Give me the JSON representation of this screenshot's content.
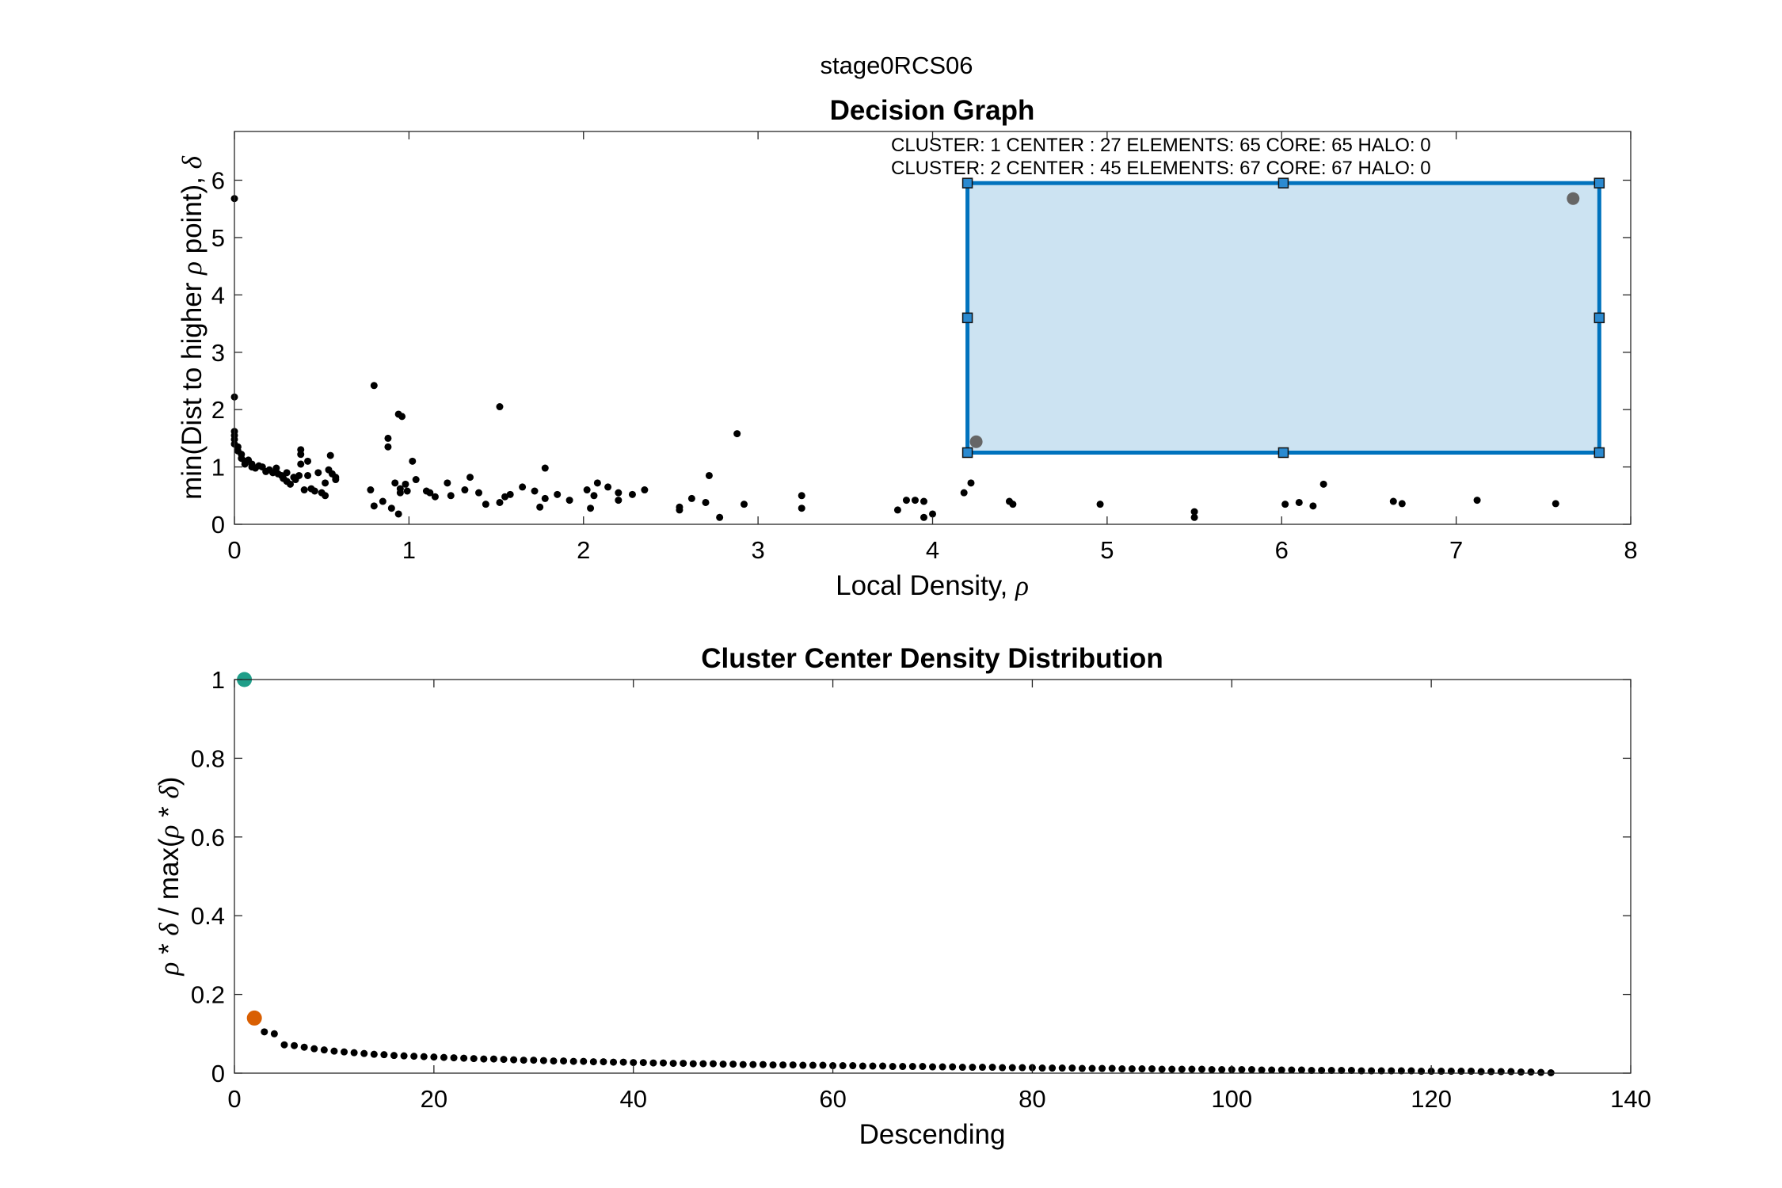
{
  "figure": {
    "suptitle": "stage0RCS06"
  },
  "colors": {
    "points": "#000000",
    "selection_fill": "#cce3f2",
    "selection_edge": "#0072bd",
    "selected_point": "#666666",
    "center_1": "#1f9e89",
    "center_2": "#d95f02"
  },
  "chart_data": [
    {
      "type": "scatter",
      "title": "Decision Graph",
      "xlabel": "Local Density, ρ",
      "xlabel_text": "Local Density, ",
      "xlabel_symbol": "ρ",
      "ylabel": "min(Dist to higher ρ point), δ",
      "ylabel_parts": [
        "min(Dist to higher ",
        "ρ",
        " point), ",
        "δ"
      ],
      "xlim": [
        0,
        8
      ],
      "ylim": [
        0,
        6.85
      ],
      "xticks": [
        0,
        1,
        2,
        3,
        4,
        5,
        6,
        7,
        8
      ],
      "yticks": [
        0,
        1,
        2,
        3,
        4,
        5,
        6
      ],
      "grid": false,
      "annotations": [
        "CLUSTER: 1 CENTER : 27 ELEMENTS: 65 CORE: 65 HALO: 0",
        "CLUSTER: 2 CENTER : 45 ELEMENTS: 67 CORE: 67 HALO: 0"
      ],
      "selection_rect": {
        "x": [
          4.2,
          7.82
        ],
        "y": [
          1.25,
          5.95
        ]
      },
      "highlighted_points": [
        [
          7.67,
          5.68
        ],
        [
          4.25,
          1.44
        ]
      ],
      "points": [
        [
          0.0,
          5.68
        ],
        [
          0.0,
          2.22
        ],
        [
          0.0,
          1.62
        ],
        [
          0.0,
          1.55
        ],
        [
          0.0,
          1.48
        ],
        [
          0.0,
          1.4
        ],
        [
          0.02,
          1.35
        ],
        [
          0.02,
          1.28
        ],
        [
          0.04,
          1.22
        ],
        [
          0.04,
          1.15
        ],
        [
          0.06,
          1.1
        ],
        [
          0.06,
          1.05
        ],
        [
          0.08,
          1.12
        ],
        [
          0.1,
          1.0
        ],
        [
          0.1,
          1.05
        ],
        [
          0.12,
          0.98
        ],
        [
          0.14,
          1.02
        ],
        [
          0.16,
          1.0
        ],
        [
          0.18,
          0.92
        ],
        [
          0.2,
          0.95
        ],
        [
          0.22,
          0.9
        ],
        [
          0.24,
          0.98
        ],
        [
          0.25,
          0.88
        ],
        [
          0.27,
          0.85
        ],
        [
          0.28,
          0.8
        ],
        [
          0.3,
          0.75
        ],
        [
          0.3,
          0.9
        ],
        [
          0.32,
          0.7
        ],
        [
          0.34,
          0.82
        ],
        [
          0.35,
          0.78
        ],
        [
          0.37,
          0.85
        ],
        [
          0.38,
          1.3
        ],
        [
          0.38,
          1.22
        ],
        [
          0.38,
          1.05
        ],
        [
          0.4,
          0.6
        ],
        [
          0.42,
          1.1
        ],
        [
          0.42,
          0.85
        ],
        [
          0.44,
          0.62
        ],
        [
          0.46,
          0.58
        ],
        [
          0.48,
          0.9
        ],
        [
          0.5,
          0.55
        ],
        [
          0.52,
          0.72
        ],
        [
          0.52,
          0.5
        ],
        [
          0.54,
          0.95
        ],
        [
          0.55,
          1.2
        ],
        [
          0.56,
          0.88
        ],
        [
          0.58,
          0.78
        ],
        [
          0.58,
          0.82
        ],
        [
          0.78,
          0.6
        ],
        [
          0.8,
          2.42
        ],
        [
          0.8,
          0.32
        ],
        [
          0.85,
          0.4
        ],
        [
          0.88,
          1.5
        ],
        [
          0.88,
          1.35
        ],
        [
          0.9,
          0.28
        ],
        [
          0.92,
          0.72
        ],
        [
          0.94,
          1.92
        ],
        [
          0.94,
          0.18
        ],
        [
          0.95,
          0.62
        ],
        [
          0.95,
          0.55
        ],
        [
          0.96,
          1.88
        ],
        [
          0.98,
          0.7
        ],
        [
          0.99,
          0.58
        ],
        [
          1.02,
          1.1
        ],
        [
          1.04,
          0.78
        ],
        [
          1.1,
          0.58
        ],
        [
          1.12,
          0.55
        ],
        [
          1.15,
          0.48
        ],
        [
          1.22,
          0.72
        ],
        [
          1.24,
          0.5
        ],
        [
          1.32,
          0.6
        ],
        [
          1.35,
          0.82
        ],
        [
          1.4,
          0.55
        ],
        [
          1.44,
          0.35
        ],
        [
          1.52,
          2.05
        ],
        [
          1.52,
          0.38
        ],
        [
          1.55,
          0.48
        ],
        [
          1.58,
          0.52
        ],
        [
          1.65,
          0.65
        ],
        [
          1.72,
          0.58
        ],
        [
          1.75,
          0.3
        ],
        [
          1.78,
          0.98
        ],
        [
          1.78,
          0.45
        ],
        [
          1.85,
          0.52
        ],
        [
          1.92,
          0.42
        ],
        [
          2.02,
          0.6
        ],
        [
          2.04,
          0.28
        ],
        [
          2.06,
          0.5
        ],
        [
          2.08,
          0.72
        ],
        [
          2.14,
          0.65
        ],
        [
          2.2,
          0.55
        ],
        [
          2.2,
          0.42
        ],
        [
          2.28,
          0.52
        ],
        [
          2.35,
          0.6
        ],
        [
          2.55,
          0.3
        ],
        [
          2.55,
          0.25
        ],
        [
          2.62,
          0.45
        ],
        [
          2.7,
          0.38
        ],
        [
          2.72,
          0.85
        ],
        [
          2.78,
          0.12
        ],
        [
          2.88,
          1.58
        ],
        [
          2.92,
          0.35
        ],
        [
          3.25,
          0.5
        ],
        [
          3.25,
          0.28
        ],
        [
          3.8,
          0.25
        ],
        [
          3.85,
          0.42
        ],
        [
          3.9,
          0.42
        ],
        [
          3.95,
          0.4
        ],
        [
          3.95,
          0.12
        ],
        [
          4.0,
          0.18
        ],
        [
          4.18,
          0.55
        ],
        [
          4.22,
          0.72
        ],
        [
          4.44,
          0.4
        ],
        [
          4.46,
          0.35
        ],
        [
          4.96,
          0.35
        ],
        [
          5.5,
          0.22
        ],
        [
          5.5,
          0.12
        ],
        [
          6.02,
          0.35
        ],
        [
          6.1,
          0.38
        ],
        [
          6.18,
          0.32
        ],
        [
          6.24,
          0.7
        ],
        [
          6.64,
          0.4
        ],
        [
          6.69,
          0.36
        ],
        [
          7.12,
          0.42
        ],
        [
          7.57,
          0.36
        ]
      ]
    },
    {
      "type": "scatter",
      "title": "Cluster Center Density Distribution",
      "xlabel": "Descending",
      "ylabel": "ρ * δ / max(ρ * δ)",
      "ylabel_parts": [
        "ρ",
        " * ",
        "δ",
        " / max(",
        "ρ",
        " * ",
        "δ",
        ")"
      ],
      "xlim": [
        0,
        140
      ],
      "ylim": [
        0,
        1
      ],
      "xticks": [
        0,
        20,
        40,
        60,
        80,
        100,
        120,
        140
      ],
      "yticks": [
        0,
        0.2,
        0.4,
        0.6,
        0.8,
        1
      ],
      "ytick_labels": [
        "0",
        "0.2",
        "0.4",
        "0.6",
        "0.8",
        "1"
      ],
      "grid": false,
      "n_points": 132,
      "centers": [
        [
          1,
          1.0
        ],
        [
          2,
          0.14
        ]
      ],
      "values": [
        1.0,
        0.14,
        0.105,
        0.1,
        0.072,
        0.07,
        0.066,
        0.062,
        0.059,
        0.056,
        0.054,
        0.052,
        0.05,
        0.048,
        0.047,
        0.045,
        0.044,
        0.043,
        0.042,
        0.041,
        0.04,
        0.039,
        0.038,
        0.037,
        0.036,
        0.036,
        0.035,
        0.034,
        0.033,
        0.033,
        0.032,
        0.031,
        0.031,
        0.03,
        0.03,
        0.029,
        0.029,
        0.028,
        0.028,
        0.027,
        0.027,
        0.026,
        0.026,
        0.025,
        0.025,
        0.024,
        0.024,
        0.024,
        0.023,
        0.023,
        0.022,
        0.022,
        0.022,
        0.021,
        0.021,
        0.021,
        0.02,
        0.02,
        0.02,
        0.019,
        0.019,
        0.019,
        0.018,
        0.018,
        0.018,
        0.017,
        0.017,
        0.017,
        0.017,
        0.016,
        0.016,
        0.016,
        0.015,
        0.015,
        0.015,
        0.015,
        0.014,
        0.014,
        0.014,
        0.014,
        0.013,
        0.013,
        0.013,
        0.013,
        0.012,
        0.012,
        0.012,
        0.012,
        0.011,
        0.011,
        0.011,
        0.011,
        0.01,
        0.01,
        0.01,
        0.01,
        0.01,
        0.009,
        0.009,
        0.009,
        0.009,
        0.009,
        0.008,
        0.008,
        0.008,
        0.008,
        0.008,
        0.007,
        0.007,
        0.007,
        0.007,
        0.007,
        0.006,
        0.006,
        0.006,
        0.006,
        0.006,
        0.006,
        0.005,
        0.005,
        0.005,
        0.005,
        0.005,
        0.005,
        0.004,
        0.004,
        0.004,
        0.004,
        0.003,
        0.003,
        0.002,
        0.001
      ]
    }
  ]
}
